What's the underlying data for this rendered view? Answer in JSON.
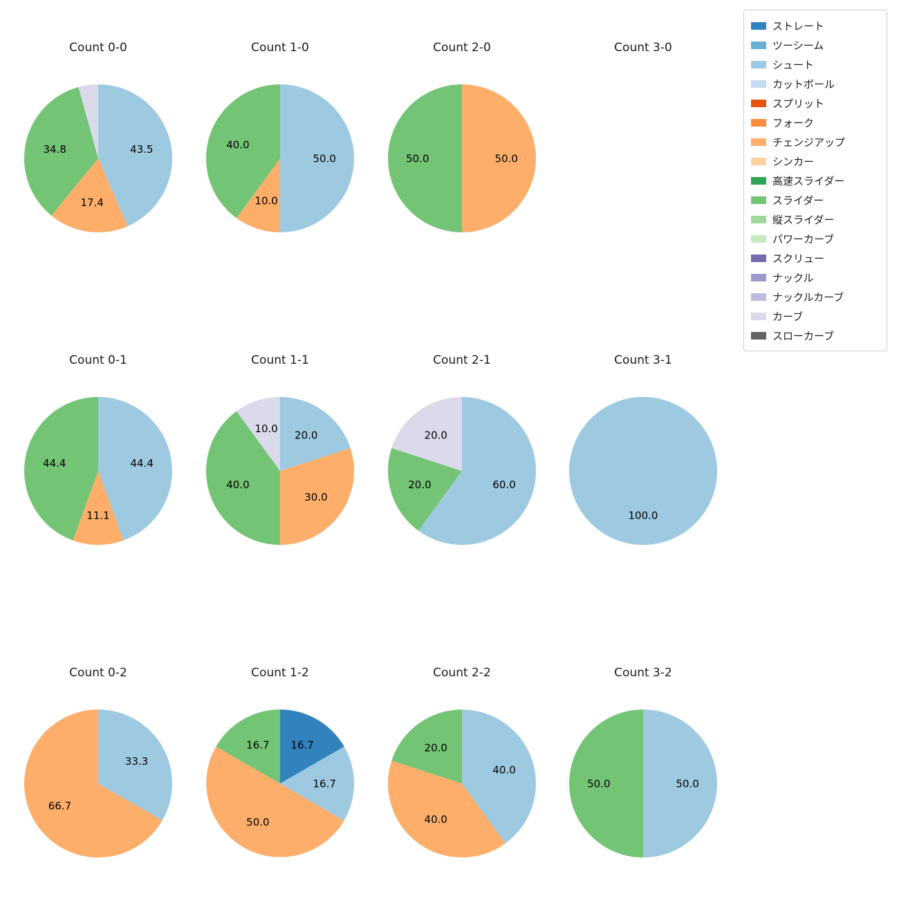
{
  "page": {
    "background": "#ffffff"
  },
  "legend": {
    "position": "upper right",
    "items": [
      {
        "label": "ストレート",
        "color": "#3182bd"
      },
      {
        "label": "ツーシーム",
        "color": "#6baed6"
      },
      {
        "label": "シュート",
        "color": "#9ecae1"
      },
      {
        "label": "カットボール",
        "color": "#c6dbef"
      },
      {
        "label": "スプリット",
        "color": "#e6550d"
      },
      {
        "label": "フォーク",
        "color": "#fd8d3c"
      },
      {
        "label": "チェンジアップ",
        "color": "#fdae6b"
      },
      {
        "label": "シンカー",
        "color": "#fdd0a2"
      },
      {
        "label": "高速スライダー",
        "color": "#31a354"
      },
      {
        "label": "スライダー",
        "color": "#74c476"
      },
      {
        "label": "縦スライダー",
        "color": "#a1d99b"
      },
      {
        "label": "パワーカーブ",
        "color": "#c7e9c0"
      },
      {
        "label": "スクリュー",
        "color": "#756bb1"
      },
      {
        "label": "ナックル",
        "color": "#9e9ac8"
      },
      {
        "label": "ナックルカーブ",
        "color": "#bcbddc"
      },
      {
        "label": "カーブ",
        "color": "#dadaeb"
      },
      {
        "label": "スローカーブ",
        "color": "#636363"
      }
    ]
  },
  "chart_data": [
    {
      "type": "pie",
      "title": "Count 0-0",
      "start_angle_deg_from_top_clockwise": 0,
      "value_unit": "%",
      "slices": [
        {
          "label": "シュート",
          "value": 43.5
        },
        {
          "label": "チェンジアップ",
          "value": 17.4
        },
        {
          "label": "スライダー",
          "value": 34.8
        },
        {
          "label": "カーブ",
          "value": 4.3,
          "label_shown": false
        }
      ]
    },
    {
      "type": "pie",
      "title": "Count 1-0",
      "value_unit": "%",
      "slices": [
        {
          "label": "シュート",
          "value": 50.0
        },
        {
          "label": "チェンジアップ",
          "value": 10.0
        },
        {
          "label": "スライダー",
          "value": 40.0
        }
      ]
    },
    {
      "type": "pie",
      "title": "Count 2-0",
      "value_unit": "%",
      "slices": [
        {
          "label": "チェンジアップ",
          "value": 50.0
        },
        {
          "label": "スライダー",
          "value": 50.0
        }
      ]
    },
    {
      "type": "pie",
      "title": "Count 3-0",
      "value_unit": "%",
      "slices": []
    },
    {
      "type": "pie",
      "title": "Count 0-1",
      "value_unit": "%",
      "slices": [
        {
          "label": "シュート",
          "value": 44.4
        },
        {
          "label": "チェンジアップ",
          "value": 11.1
        },
        {
          "label": "スライダー",
          "value": 44.4
        }
      ]
    },
    {
      "type": "pie",
      "title": "Count 1-1",
      "value_unit": "%",
      "slices": [
        {
          "label": "シュート",
          "value": 20.0
        },
        {
          "label": "チェンジアップ",
          "value": 30.0
        },
        {
          "label": "スライダー",
          "value": 40.0
        },
        {
          "label": "カーブ",
          "value": 10.0
        }
      ]
    },
    {
      "type": "pie",
      "title": "Count 2-1",
      "value_unit": "%",
      "slices": [
        {
          "label": "シュート",
          "value": 60.0
        },
        {
          "label": "スライダー",
          "value": 20.0
        },
        {
          "label": "カーブ",
          "value": 20.0
        }
      ]
    },
    {
      "type": "pie",
      "title": "Count 3-1",
      "value_unit": "%",
      "slices": [
        {
          "label": "シュート",
          "value": 100.0
        }
      ]
    },
    {
      "type": "pie",
      "title": "Count 0-2",
      "value_unit": "%",
      "slices": [
        {
          "label": "シュート",
          "value": 33.3
        },
        {
          "label": "チェンジアップ",
          "value": 66.7
        }
      ]
    },
    {
      "type": "pie",
      "title": "Count 1-2",
      "value_unit": "%",
      "slices": [
        {
          "label": "ストレート",
          "value": 16.7
        },
        {
          "label": "シュート",
          "value": 16.7
        },
        {
          "label": "チェンジアップ",
          "value": 50.0
        },
        {
          "label": "スライダー",
          "value": 16.7
        }
      ]
    },
    {
      "type": "pie",
      "title": "Count 2-2",
      "value_unit": "%",
      "slices": [
        {
          "label": "シュート",
          "value": 40.0
        },
        {
          "label": "チェンジアップ",
          "value": 40.0
        },
        {
          "label": "スライダー",
          "value": 20.0
        }
      ]
    },
    {
      "type": "pie",
      "title": "Count 3-2",
      "value_unit": "%",
      "slices": [
        {
          "label": "シュート",
          "value": 50.0
        },
        {
          "label": "スライダー",
          "value": 50.0
        }
      ]
    }
  ]
}
